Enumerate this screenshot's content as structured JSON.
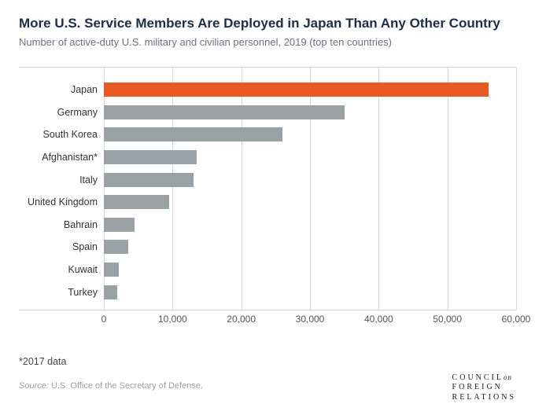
{
  "title": "More U.S. Service Members Are Deployed in Japan Than Any Other Country",
  "subtitle": "Number of active-duty U.S. military and civilian personnel, 2019 (top ten countries)",
  "chart": {
    "type": "bar",
    "orientation": "horizontal",
    "xmax": 60000,
    "xmin": 0,
    "xtick_step": 10000,
    "xticks": [
      "0",
      "10,000",
      "20,000",
      "30,000",
      "40,000",
      "50,000",
      "60,000"
    ],
    "default_bar_color": "#9aa2a6",
    "highlight_bar_color": "#e85a24",
    "grid_color": "#d8d8d8",
    "background_color": "#ffffff",
    "label_fontsize": 12.5,
    "tick_fontsize": 12,
    "rows": [
      {
        "label": "Japan",
        "value": 56000,
        "highlight": true
      },
      {
        "label": "Germany",
        "value": 35000,
        "highlight": false
      },
      {
        "label": "South Korea",
        "value": 26000,
        "highlight": false
      },
      {
        "label": "Afghanistan*",
        "value": 13500,
        "highlight": false
      },
      {
        "label": "Italy",
        "value": 13000,
        "highlight": false
      },
      {
        "label": "United Kingdom",
        "value": 9500,
        "highlight": false
      },
      {
        "label": "Bahrain",
        "value": 4500,
        "highlight": false
      },
      {
        "label": "Spain",
        "value": 3500,
        "highlight": false
      },
      {
        "label": "Kuwait",
        "value": 2200,
        "highlight": false
      },
      {
        "label": "Turkey",
        "value": 1900,
        "highlight": false
      }
    ]
  },
  "footnote": "*2017 data",
  "source_prefix": "Source:",
  "source_text": " U.S. Office of the Secretary of Defense.",
  "logo": {
    "line1a": "COUNCIL",
    "line1b": "on",
    "line2": "FOREIGN",
    "line3": "RELATIONS"
  }
}
